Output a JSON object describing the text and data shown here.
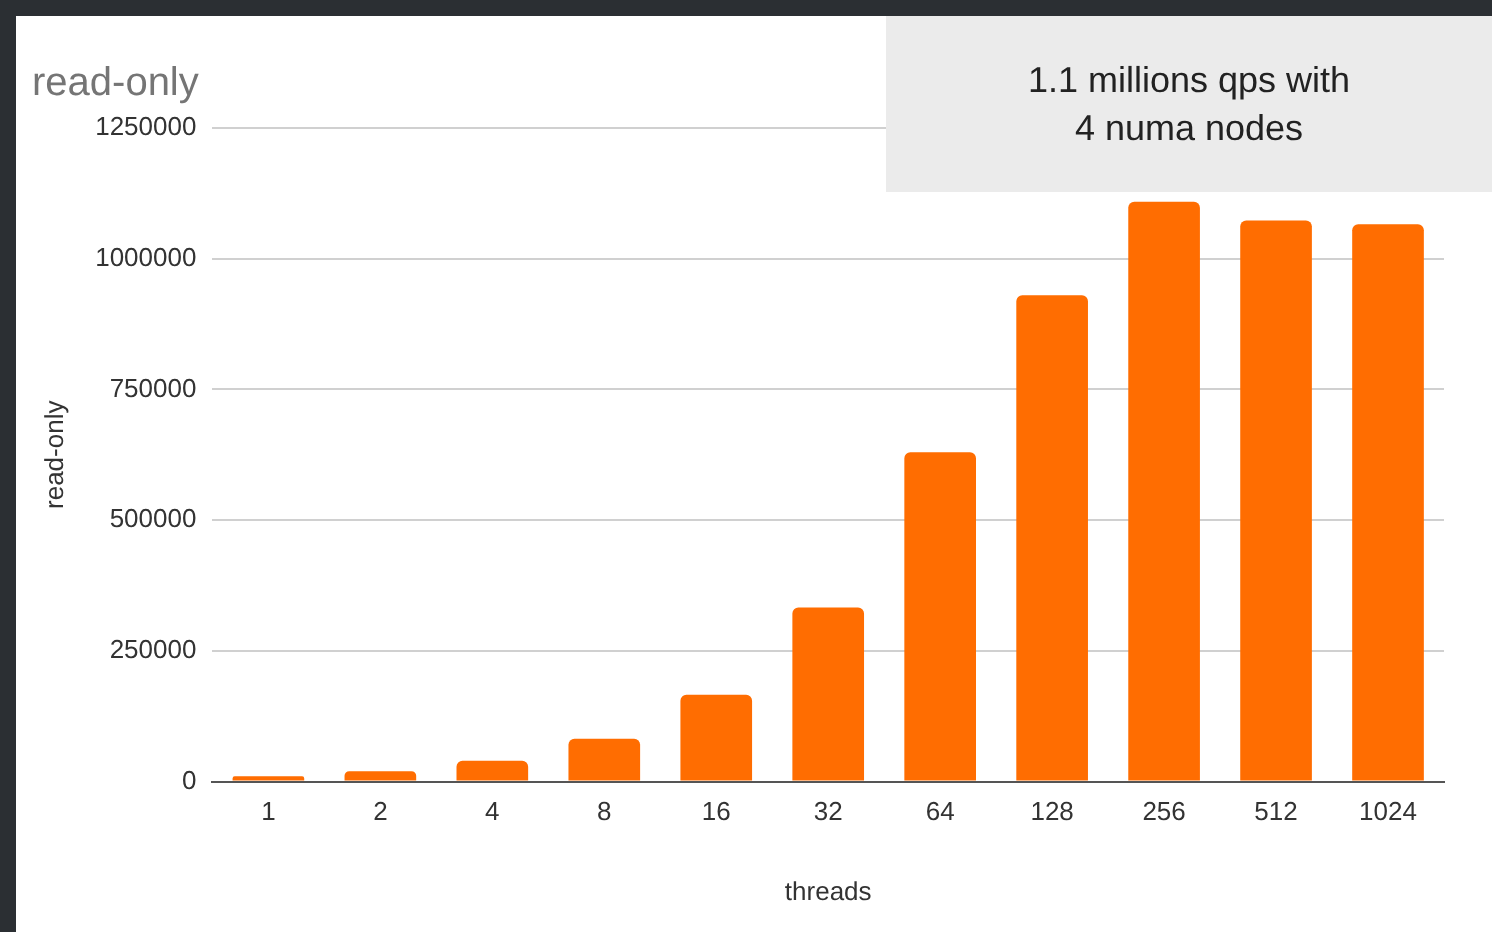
{
  "chart_data": {
    "type": "bar",
    "title": "read-only",
    "xlabel": "threads",
    "ylabel": "read-only",
    "categories": [
      "1",
      "2",
      "4",
      "8",
      "16",
      "32",
      "64",
      "128",
      "256",
      "512",
      "1024"
    ],
    "values": [
      10000,
      20000,
      40000,
      82000,
      166000,
      333000,
      630000,
      930000,
      1109000,
      1073000,
      1066000
    ],
    "color": "#ff6d01",
    "ylim": [
      0,
      1250000
    ],
    "yticks": [
      0,
      250000,
      500000,
      750000,
      1000000,
      1250000
    ],
    "grid": "y",
    "annotations": [
      "1.1 millions qps with\n4 numa nodes"
    ]
  }
}
